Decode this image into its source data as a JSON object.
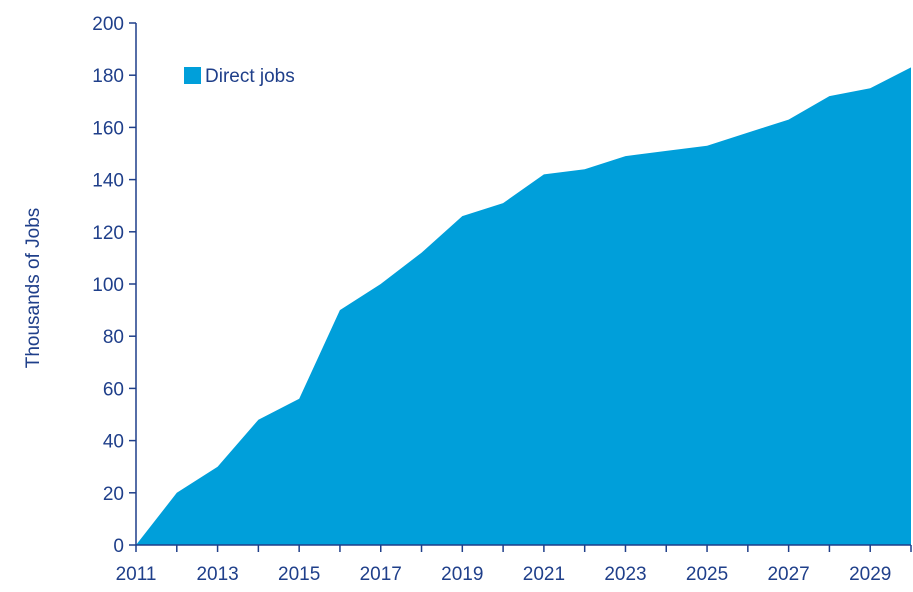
{
  "chart_data": {
    "type": "area",
    "title": "",
    "xlabel": "",
    "ylabel": "Thousands of Jobs",
    "x": [
      2011,
      2012,
      2013,
      2014,
      2015,
      2016,
      2017,
      2018,
      2019,
      2020,
      2021,
      2022,
      2023,
      2024,
      2025,
      2026,
      2027,
      2028,
      2029,
      2030
    ],
    "series": [
      {
        "name": "Direct jobs",
        "values": [
          0,
          20,
          30,
          48,
          56,
          90,
          100,
          112,
          126,
          131,
          142,
          144,
          149,
          151,
          153,
          158,
          163,
          172,
          175,
          183
        ]
      }
    ],
    "xticks": [
      "2011",
      "2013",
      "2015",
      "2017",
      "2019",
      "2021",
      "2023",
      "2025",
      "2027",
      "2029"
    ],
    "yticks": [
      "0",
      "20",
      "40",
      "60",
      "80",
      "100",
      "120",
      "140",
      "160",
      "180",
      "200"
    ],
    "ylim": [
      0,
      200
    ],
    "xlim": [
      2011,
      2030
    ],
    "grid": false,
    "legend_position": "top-left",
    "colors": {
      "area": "#009fda",
      "axis": "#1f3f8a",
      "text": "#1f3f8a"
    }
  }
}
